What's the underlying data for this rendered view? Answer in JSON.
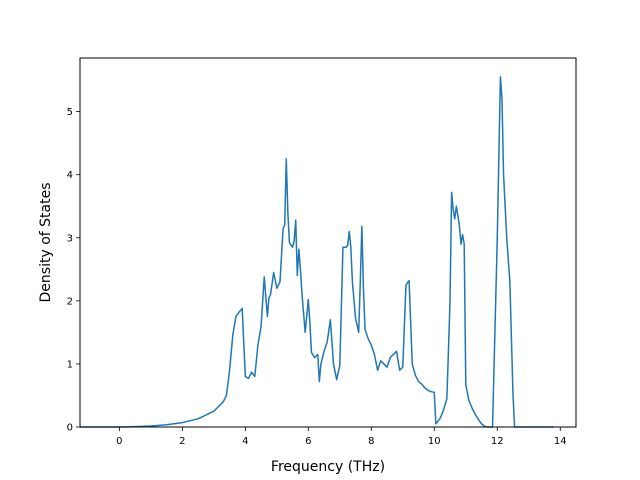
{
  "chart_data": {
    "type": "line",
    "title": "",
    "xlabel": "Frequency (THz)",
    "ylabel": "Density of States",
    "xlim": [
      -1.25,
      14.5
    ],
    "ylim": [
      0,
      5.85
    ],
    "xticks": [
      0,
      2,
      4,
      6,
      8,
      10,
      12,
      14
    ],
    "yticks": [
      0,
      1,
      2,
      3,
      4,
      5
    ],
    "grid": false,
    "line_color": "#1f77b4",
    "series": [
      {
        "x": [
          -1.25,
          -0.5,
          0,
          0.5,
          1.0,
          1.5,
          2.0,
          2.5,
          3.0,
          3.3,
          3.4,
          3.5,
          3.6,
          3.7,
          3.8,
          3.9,
          4.0,
          4.1,
          4.2,
          4.3,
          4.4,
          4.5,
          4.6,
          4.7,
          4.75,
          4.8,
          4.9,
          5.0,
          5.1,
          5.2,
          5.25,
          5.3,
          5.35,
          5.4,
          5.5,
          5.55,
          5.6,
          5.65,
          5.7,
          5.75,
          5.8,
          5.85,
          5.9,
          6.0,
          6.05,
          6.1,
          6.2,
          6.3,
          6.35,
          6.4,
          6.5,
          6.6,
          6.7,
          6.8,
          6.9,
          7.0,
          7.1,
          7.2,
          7.25,
          7.3,
          7.35,
          7.4,
          7.5,
          7.6,
          7.65,
          7.7,
          7.75,
          7.8,
          7.9,
          8.0,
          8.1,
          8.2,
          8.3,
          8.4,
          8.5,
          8.6,
          8.7,
          8.8,
          8.9,
          9.0,
          9.1,
          9.2,
          9.3,
          9.4,
          9.5,
          9.6,
          9.7,
          9.8,
          9.9,
          10.0,
          10.05,
          10.1,
          10.2,
          10.3,
          10.4,
          10.5,
          10.55,
          10.6,
          10.65,
          10.7,
          10.75,
          10.8,
          10.85,
          10.9,
          10.95,
          11.0,
          11.1,
          11.2,
          11.3,
          11.4,
          11.5,
          11.6,
          11.7,
          11.8,
          11.85,
          11.9,
          12.0,
          12.1,
          12.15,
          12.2,
          12.3,
          12.4,
          12.5,
          12.55,
          13.0,
          13.5,
          13.8
        ],
        "y": [
          0,
          0,
          0,
          0.005,
          0.015,
          0.035,
          0.07,
          0.13,
          0.25,
          0.4,
          0.5,
          0.9,
          1.45,
          1.75,
          1.82,
          1.88,
          0.8,
          0.77,
          0.87,
          0.8,
          1.3,
          1.6,
          2.38,
          1.75,
          2.05,
          2.1,
          2.45,
          2.2,
          2.3,
          3.15,
          3.2,
          4.25,
          3.4,
          2.92,
          2.85,
          2.95,
          3.28,
          2.4,
          2.82,
          2.5,
          2.1,
          1.8,
          1.5,
          2.02,
          1.65,
          1.18,
          1.1,
          1.15,
          0.72,
          1.0,
          1.2,
          1.35,
          1.7,
          1.0,
          0.75,
          0.98,
          2.85,
          2.85,
          2.88,
          3.1,
          2.85,
          2.3,
          1.72,
          1.5,
          2.3,
          3.18,
          2.2,
          1.55,
          1.4,
          1.3,
          1.15,
          0.9,
          1.05,
          1.0,
          0.95,
          1.1,
          1.15,
          1.2,
          0.9,
          0.95,
          2.25,
          2.32,
          1.0,
          0.82,
          0.72,
          0.68,
          0.62,
          0.58,
          0.56,
          0.55,
          0.05,
          0.08,
          0.15,
          0.28,
          0.45,
          2.0,
          3.72,
          3.45,
          3.3,
          3.5,
          3.35,
          3.18,
          2.9,
          3.05,
          2.9,
          0.67,
          0.42,
          0.3,
          0.2,
          0.12,
          0.05,
          0.01,
          0,
          0,
          0,
          1.0,
          3.0,
          5.55,
          5.2,
          4.0,
          3.0,
          2.3,
          0.5,
          0,
          0,
          0,
          0
        ]
      }
    ]
  }
}
